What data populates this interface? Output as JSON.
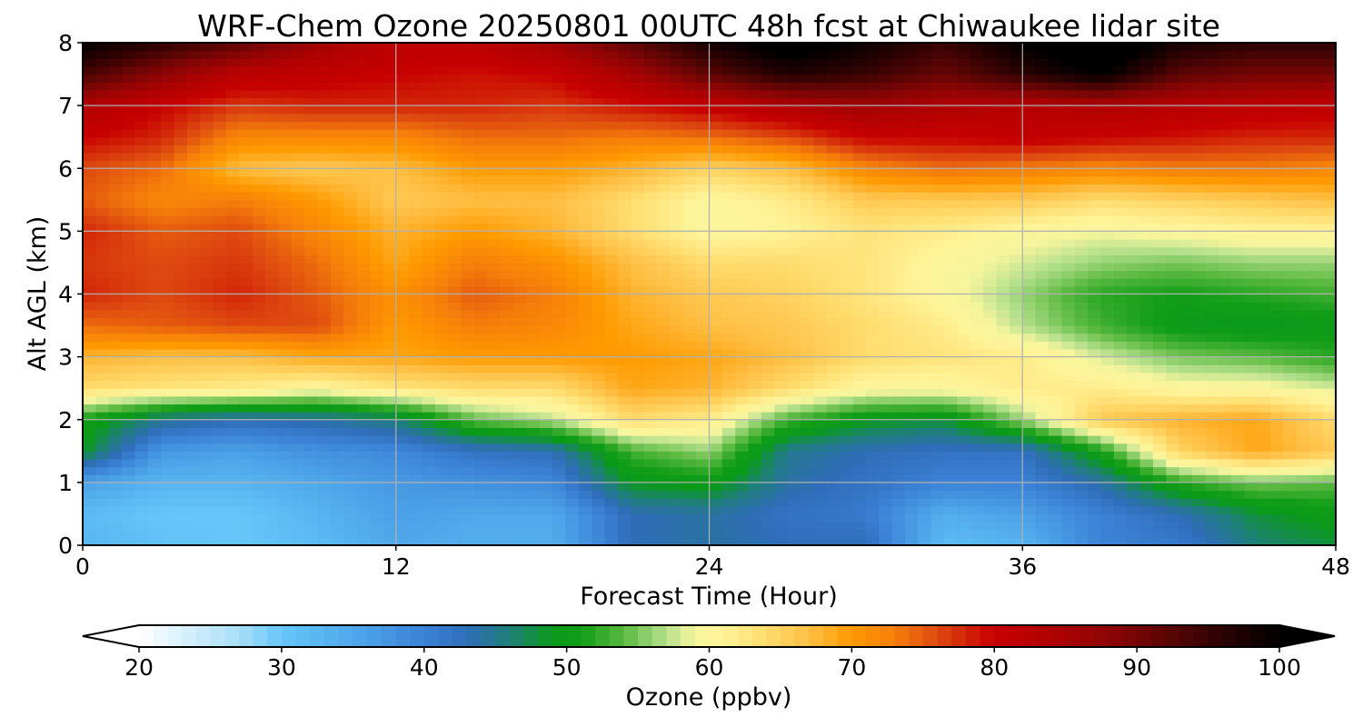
{
  "chart_data": {
    "type": "heatmap",
    "title": "WRF-Chem Ozone  20250801 00UTC 48h fcst at Chiwaukee lidar site",
    "xlabel": "Forecast Time (Hour)",
    "ylabel": "Alt AGL (km)",
    "xlim": [
      0,
      48
    ],
    "ylim": [
      0,
      8
    ],
    "xticks": [
      0,
      12,
      24,
      36,
      48
    ],
    "yticks": [
      0,
      1,
      2,
      3,
      4,
      5,
      6,
      7,
      8
    ],
    "grid": true,
    "x": [
      0,
      3,
      6,
      9,
      12,
      15,
      18,
      21,
      24,
      27,
      30,
      33,
      36,
      39,
      42,
      45,
      48
    ],
    "y": [
      0,
      0.5,
      1,
      1.5,
      2,
      2.5,
      3,
      3.5,
      4,
      4.5,
      5,
      5.5,
      6,
      6.5,
      7,
      7.5,
      8
    ],
    "z": [
      [
        33,
        31,
        30,
        32,
        35,
        34,
        34,
        43,
        44,
        43,
        43,
        32,
        33,
        40,
        41,
        46,
        48
      ],
      [
        32,
        30,
        30,
        33,
        36,
        35,
        35,
        43,
        44,
        42,
        41,
        34,
        36,
        40,
        43,
        48,
        50
      ],
      [
        36,
        33,
        33,
        35,
        37,
        38,
        39,
        49,
        50,
        44,
        42,
        40,
        40,
        44,
        52,
        55,
        54
      ],
      [
        49,
        37,
        36,
        38,
        39,
        42,
        43,
        53,
        56,
        45,
        43,
        42,
        42,
        51,
        65,
        69,
        66
      ],
      [
        51,
        45,
        43,
        44,
        46,
        54,
        57,
        64,
        62,
        53,
        49,
        48,
        56,
        66,
        68,
        69,
        64
      ],
      [
        64,
        63,
        62,
        60,
        63,
        64,
        64,
        69,
        68,
        64,
        60,
        60,
        62,
        62,
        60,
        60,
        58
      ],
      [
        68,
        67,
        67,
        69,
        69,
        70,
        70,
        70,
        69,
        67,
        64,
        63,
        62,
        58,
        55,
        54,
        52
      ],
      [
        74,
        75,
        76,
        76,
        70,
        73,
        72,
        69,
        67,
        66,
        64,
        62,
        57,
        53,
        50,
        49,
        50
      ],
      [
        78,
        76,
        78,
        75,
        71,
        75,
        73,
        68,
        66,
        65,
        63,
        60,
        56,
        52,
        51,
        52,
        53
      ],
      [
        77,
        76,
        77,
        74,
        69,
        73,
        71,
        67,
        64,
        64,
        63,
        60,
        58,
        56,
        55,
        56,
        56
      ],
      [
        78,
        75,
        76,
        72,
        68,
        70,
        68,
        64,
        60,
        61,
        63,
        62,
        60,
        59,
        60,
        61,
        61
      ],
      [
        75,
        72,
        73,
        70,
        66,
        67,
        67,
        64,
        60,
        62,
        66,
        66,
        66,
        64,
        65,
        66,
        67
      ],
      [
        76,
        74,
        67,
        66,
        67,
        70,
        70,
        68,
        65,
        67,
        72,
        74,
        73,
        72,
        73,
        73,
        72
      ],
      [
        80,
        78,
        72,
        72,
        72,
        74,
        74,
        73,
        74,
        76,
        80,
        80,
        81,
        80,
        79,
        78,
        78
      ],
      [
        84,
        80,
        77,
        78,
        78,
        78,
        77,
        79,
        81,
        84,
        86,
        84,
        83,
        84,
        83,
        82,
        81
      ],
      [
        94,
        88,
        82,
        81,
        80,
        79,
        80,
        85,
        92,
        97,
        95,
        91,
        96,
        100,
        92,
        90,
        90
      ],
      [
        100,
        96,
        92,
        86,
        82,
        82,
        86,
        92,
        98,
        102,
        99,
        95,
        100,
        104,
        98,
        96,
        96
      ]
    ],
    "colorbar": {
      "label": "Ozone  (ppbv)",
      "min": 20,
      "max": 100,
      "ticks": [
        20,
        30,
        40,
        50,
        60,
        70,
        80,
        90,
        100
      ],
      "extend": "both",
      "colormap": [
        [
          20,
          "#ffffff"
        ],
        [
          27,
          "#a8dff8"
        ],
        [
          30,
          "#66c6fa"
        ],
        [
          35,
          "#4fa8ea"
        ],
        [
          40,
          "#3b82d6"
        ],
        [
          43,
          "#2f6db8"
        ],
        [
          46,
          "#1f7f7a"
        ],
        [
          49,
          "#0a9a1a"
        ],
        [
          51,
          "#119d17"
        ],
        [
          54,
          "#5ab940"
        ],
        [
          57,
          "#b5e08d"
        ],
        [
          59,
          "#f6f59d"
        ],
        [
          61,
          "#fff398"
        ],
        [
          64,
          "#ffdc6e"
        ],
        [
          67,
          "#ffbf44"
        ],
        [
          70,
          "#ff9a00"
        ],
        [
          73,
          "#f57e0a"
        ],
        [
          76,
          "#de4a10"
        ],
        [
          80,
          "#c70000"
        ],
        [
          84,
          "#b00202"
        ],
        [
          88,
          "#8d0505"
        ],
        [
          92,
          "#5e0505"
        ],
        [
          96,
          "#2c0202"
        ],
        [
          100,
          "#000000"
        ]
      ]
    }
  }
}
